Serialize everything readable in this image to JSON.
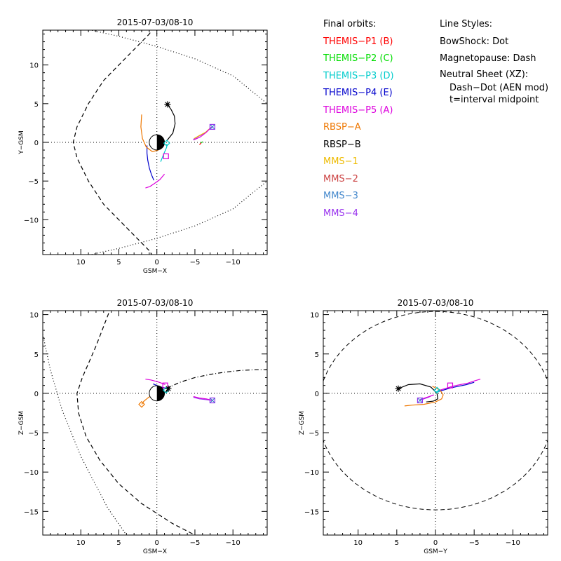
{
  "legend": {
    "orbits_title": "Final orbits:",
    "orbits": [
      {
        "label": "THEMIS−P1 (B)",
        "color": "#ff0000"
      },
      {
        "label": "THEMIS−P2 (C)",
        "color": "#00dd00"
      },
      {
        "label": "THEMIS−P3 (D)",
        "color": "#00cccc"
      },
      {
        "label": "THEMIS−P4 (E)",
        "color": "#0000cc"
      },
      {
        "label": "THEMIS−P5 (A)",
        "color": "#dd00dd"
      },
      {
        "label": "RBSP−A",
        "color": "#ee7700"
      },
      {
        "label": "RBSP−B",
        "color": "#000000"
      },
      {
        "label": "MMS−1",
        "color": "#eebb00"
      },
      {
        "label": "MMS−2",
        "color": "#cc4444"
      },
      {
        "label": "MMS−3",
        "color": "#4488cc"
      },
      {
        "label": "MMS−4",
        "color": "#9933ee"
      }
    ],
    "styles_title": "Line Styles:",
    "styles": [
      "BowShock: Dot",
      "Magnetopause: Dash",
      "Neutral Sheet (XZ):",
      "Dash−Dot (AEN mod)",
      "t=interval midpoint"
    ]
  },
  "chart_data": [
    {
      "type": "line",
      "panel": "xy",
      "title": "2015-07-03/08-10",
      "xlabel": "GSM−X",
      "ylabel": "Y−GSM",
      "xlim": [
        15,
        -14.5
      ],
      "ylim": [
        14.5,
        -14.5
      ],
      "xticks": [
        10,
        5,
        0,
        -5,
        -10
      ],
      "xticklabels": [
        "10",
        "5",
        "0",
        "−5",
        "−10"
      ],
      "yticks": [
        -10,
        -5,
        0,
        5,
        10
      ],
      "yticklabels": [
        "−10",
        "−5",
        "0",
        "5",
        "10"
      ],
      "earth": true,
      "series": [
        {
          "name": "BowShock",
          "style": "dot",
          "color": "#000000",
          "x": [
            10,
            5,
            0,
            -5,
            -10,
            -14.5,
            -16,
            -14.5,
            -10,
            -5,
            0,
            5,
            10,
            14,
            15
          ],
          "y": [
            -14.8,
            -13.7,
            -12.4,
            -10.8,
            -8.6,
            -5,
            0,
            5,
            8.6,
            10.8,
            12.4,
            13.7,
            14.8,
            16,
            17
          ]
        },
        {
          "name": "Magnetopause",
          "style": "dash",
          "color": "#000000",
          "x": [
            -1,
            1,
            4,
            7,
            9,
            10.5,
            11,
            10.5,
            9,
            7,
            4,
            1,
            -1
          ],
          "y": [
            -17,
            -14,
            -11,
            -8,
            -5,
            -2,
            0,
            2,
            5,
            8,
            11,
            14,
            17
          ]
        },
        {
          "name": "THEMIS−P4 (E)",
          "color": "#0000cc",
          "x": [
            0.4,
            0.7,
            1,
            1.2,
            1.3,
            1.3
          ],
          "y": [
            -4.9,
            -4.2,
            -3.3,
            -2.3,
            -1.4,
            -0.4
          ]
        },
        {
          "name": "THEMIS−P5 (A)",
          "color": "#dd00dd",
          "x": [
            1.5,
            0.9,
            0.3,
            -0.4,
            -1
          ],
          "y": [
            -5.9,
            -5.7,
            -5.3,
            -4.8,
            -4.1
          ]
        },
        {
          "name": "THEMIS−P3 (D)",
          "color": "#00cccc",
          "x": [
            -0.5,
            -0.9,
            -1.3,
            -1.3
          ],
          "y": [
            -2.5,
            -1.5,
            -0.6,
            -0.2
          ]
        },
        {
          "name": "THEMIS−P1 (B)",
          "color": "#ff0000",
          "x": [
            -5.6,
            -5.7,
            -5.8,
            -5.9
          ],
          "y": [
            -0.3,
            -0.2,
            -0.1,
            0
          ]
        },
        {
          "name": "THEMIS−P2 (C)",
          "color": "#00dd00",
          "x": [
            -5.8,
            -5.9,
            -6
          ],
          "y": [
            -0.1,
            0,
            0.1
          ]
        },
        {
          "name": "MMS−4",
          "color": "#9933ee",
          "x": [
            -4.8,
            -5.5,
            -6.3,
            -7
          ],
          "y": [
            0.4,
            0.8,
            1.2,
            1.8
          ]
        },
        {
          "name": "MMS−1",
          "color": "#eebb00",
          "x": [
            -4.9,
            -5.6,
            -6.4,
            -7.1
          ],
          "y": [
            0.5,
            0.9,
            1.3,
            1.9
          ]
        },
        {
          "name": "THEMIS−P5 (A) orbit",
          "color": "#dd00dd",
          "x": [
            -4.8,
            -5.7,
            -6.5,
            -7.2
          ],
          "y": [
            0.3,
            0.7,
            1.3,
            2
          ]
        },
        {
          "name": "RBSP−A",
          "color": "#ee7700",
          "x": [
            2,
            2.1,
            1.9,
            1.4,
            0.6,
            -0.2
          ],
          "y": [
            3.6,
            2,
            0.5,
            -0.6,
            -1.2,
            -1
          ]
        },
        {
          "name": "RBSP−B",
          "color": "#000000",
          "x": [
            -1.3,
            -2.1,
            -2.4,
            -2.3,
            -1.9,
            -1.4
          ],
          "y": [
            0.2,
            1.2,
            2.4,
            3.4,
            4.2,
            4.9
          ]
        }
      ],
      "markers": [
        {
          "shape": "square",
          "color": "#dd00dd",
          "x": -1.2,
          "y": -1.8
        },
        {
          "shape": "diamond",
          "color": "#00cccc",
          "x": -1.3,
          "y": -0.1
        },
        {
          "shape": "star",
          "color": "#000000",
          "x": -1.4,
          "y": 4.9
        },
        {
          "shape": "square",
          "color": "#9933ee",
          "x": -7.3,
          "y": 2
        },
        {
          "shape": "xsquare",
          "color": "#4488cc",
          "x": -7.3,
          "y": 2
        }
      ]
    },
    {
      "type": "line",
      "panel": "xz",
      "title": "2015-07-03/08-10",
      "xlabel": "GSM−X",
      "ylabel": "Z−GSM",
      "xlim": [
        15,
        -14.5
      ],
      "ylim": [
        10.5,
        -18
      ],
      "xticks": [
        10,
        5,
        0,
        -5,
        -10
      ],
      "xticklabels": [
        "10",
        "5",
        "0",
        "−5",
        "−10"
      ],
      "yticks": [
        10,
        5,
        0,
        -5,
        -10,
        -15
      ],
      "yticklabels": [
        "10",
        "5",
        "0",
        "−5",
        "−10",
        "−15"
      ],
      "earth": true,
      "series": [
        {
          "name": "BowShock",
          "style": "dot",
          "color": "#000000",
          "x": [
            15,
            14,
            12.5,
            10,
            6.5,
            4
          ],
          "y": [
            7.5,
            3,
            -2,
            -8,
            -14.5,
            -18
          ]
        },
        {
          "name": "Magnetopause",
          "style": "dash",
          "color": "#000000",
          "x": [
            6,
            8,
            9.8,
            10.5,
            10.3,
            9.3,
            7.5,
            5,
            2,
            -2,
            -5
          ],
          "y": [
            11,
            6,
            2,
            0,
            -2.5,
            -5.5,
            -8.5,
            -11.5,
            -14,
            -16.5,
            -18
          ]
        },
        {
          "name": "Neutral Sheet",
          "style": "dashdot",
          "color": "#000000",
          "x": [
            -1.2,
            -3,
            -5,
            -7,
            -9,
            -11,
            -13,
            -14.5
          ],
          "y": [
            0.6,
            1.4,
            2,
            2.4,
            2.7,
            2.9,
            3,
            3
          ]
        },
        {
          "name": "THEMIS−P5 (A)",
          "color": "#dd00dd",
          "x": [
            1.5,
            0.8,
            0,
            -0.6,
            -1.1
          ],
          "y": [
            1.8,
            1.7,
            1.5,
            1.3,
            1.1
          ]
        },
        {
          "name": "THEMIS−P4 (E)",
          "color": "#0000cc",
          "x": [
            0.5,
            0,
            -0.5,
            -1,
            -1.2
          ],
          "y": [
            1.2,
            1,
            0.8,
            0.7,
            0.6
          ]
        },
        {
          "name": "MMS−4",
          "color": "#9933ee",
          "x": [
            -4.8,
            -5.6,
            -6.5,
            -7.3
          ],
          "y": [
            -0.5,
            -0.7,
            -0.8,
            -0.9
          ]
        },
        {
          "name": "THEMIS−P5 (A) orbit",
          "color": "#dd00dd",
          "x": [
            -4.8,
            -5.6,
            -6.5,
            -7.3
          ],
          "y": [
            -0.4,
            -0.6,
            -0.7,
            -0.9
          ]
        },
        {
          "name": "RBSP−A",
          "color": "#ee7700",
          "x": [
            2,
            1.7,
            1.2,
            0.6,
            0.1,
            -0.5
          ],
          "y": [
            -1.4,
            -1,
            -0.6,
            -0.2,
            0.1,
            0.4
          ]
        },
        {
          "name": "RBSP−B",
          "color": "#000000",
          "x": [
            -1.1,
            -1.5,
            -1.8,
            -1.6,
            -1.3
          ],
          "y": [
            0.1,
            0.5,
            0.9,
            0.8,
            0.6
          ]
        }
      ],
      "markers": [
        {
          "shape": "square",
          "color": "#dd00dd",
          "x": -1.1,
          "y": 1
        },
        {
          "shape": "diamond",
          "color": "#00cccc",
          "x": -1.2,
          "y": 0.4
        },
        {
          "shape": "star",
          "color": "#000000",
          "x": -1.5,
          "y": 0.6
        },
        {
          "shape": "diamond",
          "color": "#ee7700",
          "x": 2,
          "y": -1.4
        },
        {
          "shape": "square",
          "color": "#9933ee",
          "x": -7.3,
          "y": -0.9
        },
        {
          "shape": "xsquare",
          "color": "#4488cc",
          "x": -7.3,
          "y": -0.9
        }
      ]
    },
    {
      "type": "line",
      "panel": "yz",
      "title": "2015-07-03/08-10",
      "xlabel": "GSM−Y",
      "ylabel": "Z−GSM",
      "xlim": [
        14.5,
        -14.5
      ],
      "ylim": [
        10.5,
        -18
      ],
      "xticks": [
        10,
        5,
        0,
        -5,
        -10
      ],
      "xticklabels": [
        "10",
        "5",
        "0",
        "−5",
        "−10"
      ],
      "yticks": [
        10,
        5,
        0,
        -5,
        -10,
        -15
      ],
      "yticklabels": [
        "10",
        "5",
        "0",
        "−5",
        "−10",
        "−15"
      ],
      "earth": false,
      "series": [
        {
          "name": "Magnetopause",
          "style": "dash",
          "color": "#000000",
          "ellipse": {
            "cx": 0,
            "cy": -2.2,
            "rx": 15.2,
            "ry": 12.6
          }
        },
        {
          "name": "THEMIS−P5 (A)",
          "color": "#dd00dd",
          "x": [
            -0.3,
            -1.2,
            -2.2,
            -3.2,
            -4.2,
            -5.1,
            -5.8
          ],
          "y": [
            0.3,
            0.6,
            0.9,
            1.1,
            1.3,
            1.6,
            1.8
          ]
        },
        {
          "name": "THEMIS−P4 (E)",
          "color": "#0000cc",
          "x": [
            -0.3,
            -1,
            -2,
            -3,
            -4,
            -5
          ],
          "y": [
            0.2,
            0.4,
            0.7,
            0.9,
            1.1,
            1.4
          ]
        },
        {
          "name": "THEMIS−P3 (D)",
          "color": "#00cccc",
          "x": [
            0,
            -0.3,
            -0.6
          ],
          "y": [
            0.1,
            0.3,
            0.5
          ]
        },
        {
          "name": "RBSP−B",
          "color": "#000000",
          "x": [
            4.8,
            3.5,
            2,
            0.6,
            -0.2,
            -0.3,
            0.3,
            1.2
          ],
          "y": [
            0.6,
            1.1,
            1.2,
            0.8,
            0,
            -0.7,
            -1,
            -1.1
          ]
        },
        {
          "name": "RBSP−A",
          "color": "#ee7700",
          "x": [
            4,
            3,
            1.5,
            0,
            -0.8,
            -1,
            -0.6,
            0.4
          ],
          "y": [
            -1.6,
            -1.5,
            -1.4,
            -1.1,
            -0.7,
            -0.2,
            0.4,
            0.9
          ]
        },
        {
          "name": "MMS−4",
          "color": "#9933ee",
          "x": [
            2,
            1.5,
            0.9,
            0.3
          ],
          "y": [
            -0.9,
            -0.7,
            -0.5,
            -0.2
          ]
        },
        {
          "name": "THEMIS−P5 (A) orbit",
          "color": "#dd00dd",
          "x": [
            2,
            1.4,
            0.8,
            0.2
          ],
          "y": [
            -0.8,
            -0.6,
            -0.4,
            -0.2
          ]
        }
      ],
      "markers": [
        {
          "shape": "star",
          "color": "#000000",
          "x": 4.8,
          "y": 0.6
        },
        {
          "shape": "diamond",
          "color": "#00cccc",
          "x": -0.2,
          "y": 0.4
        },
        {
          "shape": "square",
          "color": "#dd00dd",
          "x": -1.9,
          "y": 1
        },
        {
          "shape": "square",
          "color": "#9933ee",
          "x": 2,
          "y": -0.9
        },
        {
          "shape": "xsquare",
          "color": "#4488cc",
          "x": 2,
          "y": -0.9
        }
      ]
    }
  ]
}
